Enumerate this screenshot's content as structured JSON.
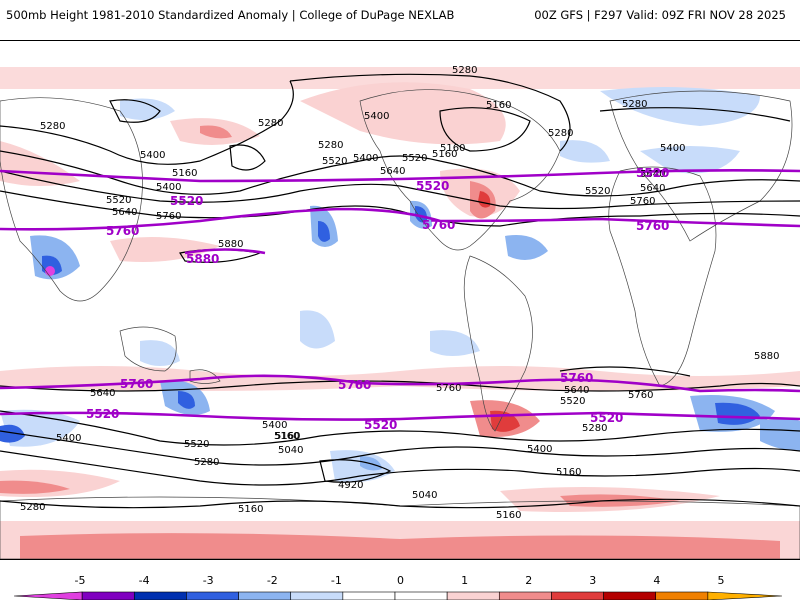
{
  "header": {
    "title": "500mb Height 1981-2010 Standardized Anomaly | College of DuPage NEXLAB",
    "run_info": "00Z GFS | F297 Valid: 09Z FRI NOV 28 2025"
  },
  "map": {
    "black_contours": [
      "5280",
      "5160",
      "5400",
      "5280",
      "5520",
      "5400",
      "5160",
      "5520",
      "5640",
      "5400",
      "5520",
      "5280",
      "5280",
      "5160",
      "5640",
      "5760",
      "5160",
      "5400",
      "5520",
      "5640",
      "5400",
      "5760",
      "5880",
      "5640",
      "5400",
      "5280",
      "5160",
      "5400",
      "5520",
      "5040",
      "5160",
      "4920",
      "5040",
      "5160",
      "5280",
      "5760",
      "5640",
      "5520",
      "5400",
      "5280",
      "5160",
      "5880",
      "5640",
      "5760",
      "5280",
      "5160",
      "5280"
    ],
    "purple_contours": [
      "5520",
      "5760",
      "5880",
      "5520",
      "5760",
      "5520",
      "5760",
      "5760",
      "5520",
      "5760",
      "5520",
      "5760",
      "5520"
    ]
  },
  "legend": {
    "ticks": [
      "-5",
      "-4",
      "-3",
      "-2",
      "-1",
      "0",
      "1",
      "2",
      "3",
      "4",
      "5"
    ],
    "colors": [
      "#e040e0",
      "#8000c0",
      "#0030b0",
      "#3060e0",
      "#8cb4f0",
      "#c8dcfa",
      "#ffffff",
      "#ffffff",
      "#fad2d2",
      "#f08c8c",
      "#e03c3c",
      "#b40000",
      "#f08000",
      "#ffb000"
    ]
  }
}
